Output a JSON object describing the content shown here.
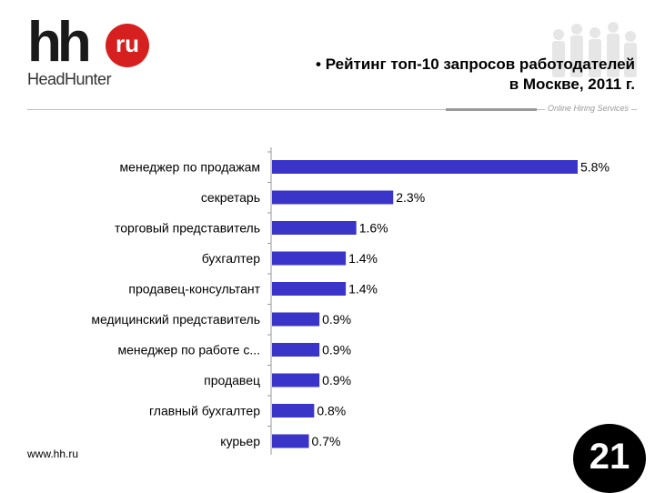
{
  "logo": {
    "mark": "hh",
    "badge": "ru",
    "brand": "HeadHunter"
  },
  "title_line1": "• Рейтинг топ-10 запросов работодателей",
  "title_line2": "в Москве, 2011 г.",
  "tagline": "Online Hiring Services",
  "footer_url": "www.hh.ru",
  "page_number": "21",
  "colors": {
    "bar": "#3a35c8",
    "badge": "#d6201f",
    "page_badge": "#000000"
  },
  "chart_data": {
    "type": "bar",
    "orientation": "horizontal",
    "categories": [
      "менеджер по продажам",
      "секретарь",
      "торговый представитель",
      "бухгалтер",
      "продавец-консультант",
      "медицинский представитель",
      "менеджер по работе с...",
      "продавец",
      "главный бухгалтер",
      "курьер"
    ],
    "values": [
      5.8,
      2.3,
      1.6,
      1.4,
      1.4,
      0.9,
      0.9,
      0.9,
      0.8,
      0.7
    ],
    "value_labels": [
      "5.8%",
      "2.3%",
      "1.6%",
      "1.4%",
      "1.4%",
      "0.9%",
      "0.9%",
      "0.9%",
      "0.8%",
      "0.7%"
    ],
    "xlim": [
      0,
      5.8
    ],
    "grid": false,
    "legend": "none"
  }
}
